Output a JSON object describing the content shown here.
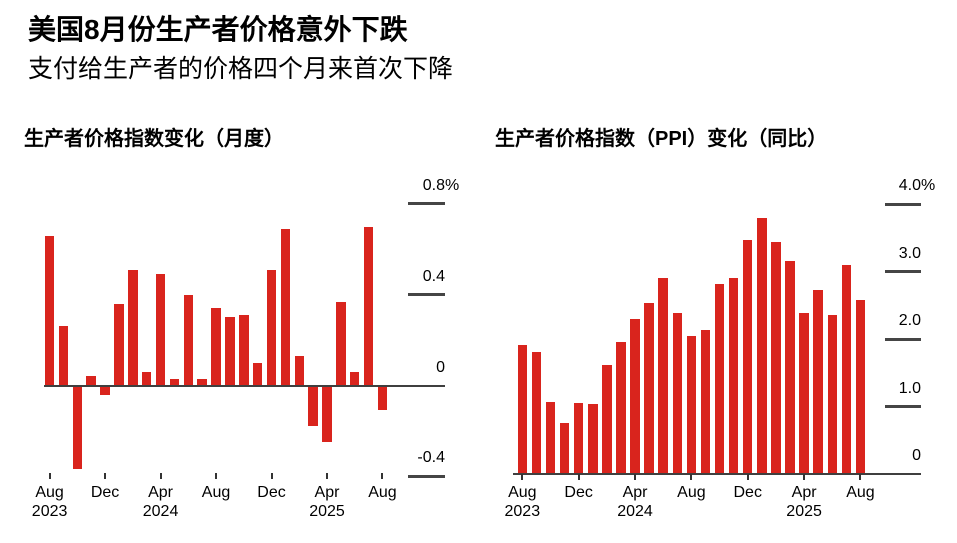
{
  "header": {
    "title": "美国8月份生产者价格意外下跌",
    "subtitle": "支付给生产者的价格四个月来首次下降"
  },
  "colors": {
    "bar": "#d9241d",
    "text": "#000000",
    "axis": "#3f3f3f",
    "background": "#ffffff"
  },
  "chart_data": [
    {
      "id": "ppi-monthly",
      "type": "bar",
      "title": "生产者价格指数变化（月度）",
      "unit": "%",
      "xlabel": "",
      "ylabel": "",
      "ylim": [
        -0.4,
        0.8
      ],
      "grid": "right-side tick dashes",
      "legend": null,
      "categories": [
        "Aug 2023",
        "Sep 2023",
        "Oct 2023",
        "Nov 2023",
        "Dec 2023",
        "Jan 2024",
        "Feb 2024",
        "Mar 2024",
        "Apr 2024",
        "May 2024",
        "Jun 2024",
        "Jul 2024",
        "Aug 2024",
        "Sep 2024",
        "Oct 2024",
        "Nov 2024",
        "Dec 2024",
        "Jan 2025",
        "Feb 2025",
        "Mar 2025",
        "Apr 2025",
        "May 2025",
        "Jun 2025",
        "Jul 2025",
        "Aug 2025"
      ],
      "values": [
        0.66,
        0.26,
        -0.37,
        0.04,
        -0.04,
        0.36,
        0.51,
        0.06,
        0.49,
        0.03,
        0.4,
        0.03,
        0.34,
        0.3,
        0.31,
        0.1,
        0.51,
        0.69,
        0.13,
        -0.18,
        -0.25,
        0.37,
        0.06,
        0.7,
        -0.11
      ],
      "y_ticks": [
        {
          "value": 0.8,
          "label": "0.8%"
        },
        {
          "value": 0.4,
          "label": "0.4"
        },
        {
          "value": 0,
          "label": "0"
        },
        {
          "value": -0.4,
          "label": "-0.4"
        }
      ],
      "x_ticks": [
        {
          "index": 0,
          "month": "Aug",
          "year": "2023"
        },
        {
          "index": 4,
          "month": "Dec"
        },
        {
          "index": 8,
          "month": "Apr",
          "year": "2024"
        },
        {
          "index": 12,
          "month": "Aug"
        },
        {
          "index": 16,
          "month": "Dec"
        },
        {
          "index": 20,
          "month": "Apr",
          "year": "2025"
        },
        {
          "index": 24,
          "month": "Aug"
        }
      ]
    },
    {
      "id": "ppi-yoy",
      "type": "bar",
      "title": "生产者价格指数（PPI）变化（同比）",
      "unit": "%",
      "xlabel": "",
      "ylabel": "",
      "ylim": [
        0,
        4.0
      ],
      "grid": "right-side tick dashes",
      "legend": null,
      "categories": [
        "Aug 2023",
        "Sep 2023",
        "Oct 2023",
        "Nov 2023",
        "Dec 2023",
        "Jan 2024",
        "Feb 2024",
        "Mar 2024",
        "Apr 2024",
        "May 2024",
        "Jun 2024",
        "Jul 2024",
        "Aug 2024",
        "Sep 2024",
        "Oct 2024",
        "Nov 2024",
        "Dec 2024",
        "Jan 2025",
        "Feb 2025",
        "Mar 2025",
        "Apr 2025",
        "May 2025",
        "Jun 2025",
        "Jul 2025",
        "Aug 2025"
      ],
      "values": [
        1.91,
        1.81,
        1.07,
        0.75,
        1.05,
        1.03,
        1.62,
        1.96,
        2.29,
        2.53,
        2.91,
        2.38,
        2.05,
        2.14,
        2.82,
        2.9,
        3.47,
        3.79,
        3.43,
        3.15,
        2.38,
        2.72,
        2.36,
        3.09,
        2.58
      ],
      "y_ticks": [
        {
          "value": 4.0,
          "label": "4.0%"
        },
        {
          "value": 3.0,
          "label": "3.0"
        },
        {
          "value": 2.0,
          "label": "2.0"
        },
        {
          "value": 1.0,
          "label": "1.0"
        },
        {
          "value": 0,
          "label": "0"
        }
      ],
      "x_ticks": [
        {
          "index": 0,
          "month": "Aug",
          "year": "2023"
        },
        {
          "index": 4,
          "month": "Dec"
        },
        {
          "index": 8,
          "month": "Apr",
          "year": "2024"
        },
        {
          "index": 12,
          "month": "Aug"
        },
        {
          "index": 16,
          "month": "Dec"
        },
        {
          "index": 20,
          "month": "Apr",
          "year": "2025"
        },
        {
          "index": 24,
          "month": "Aug"
        }
      ]
    }
  ]
}
